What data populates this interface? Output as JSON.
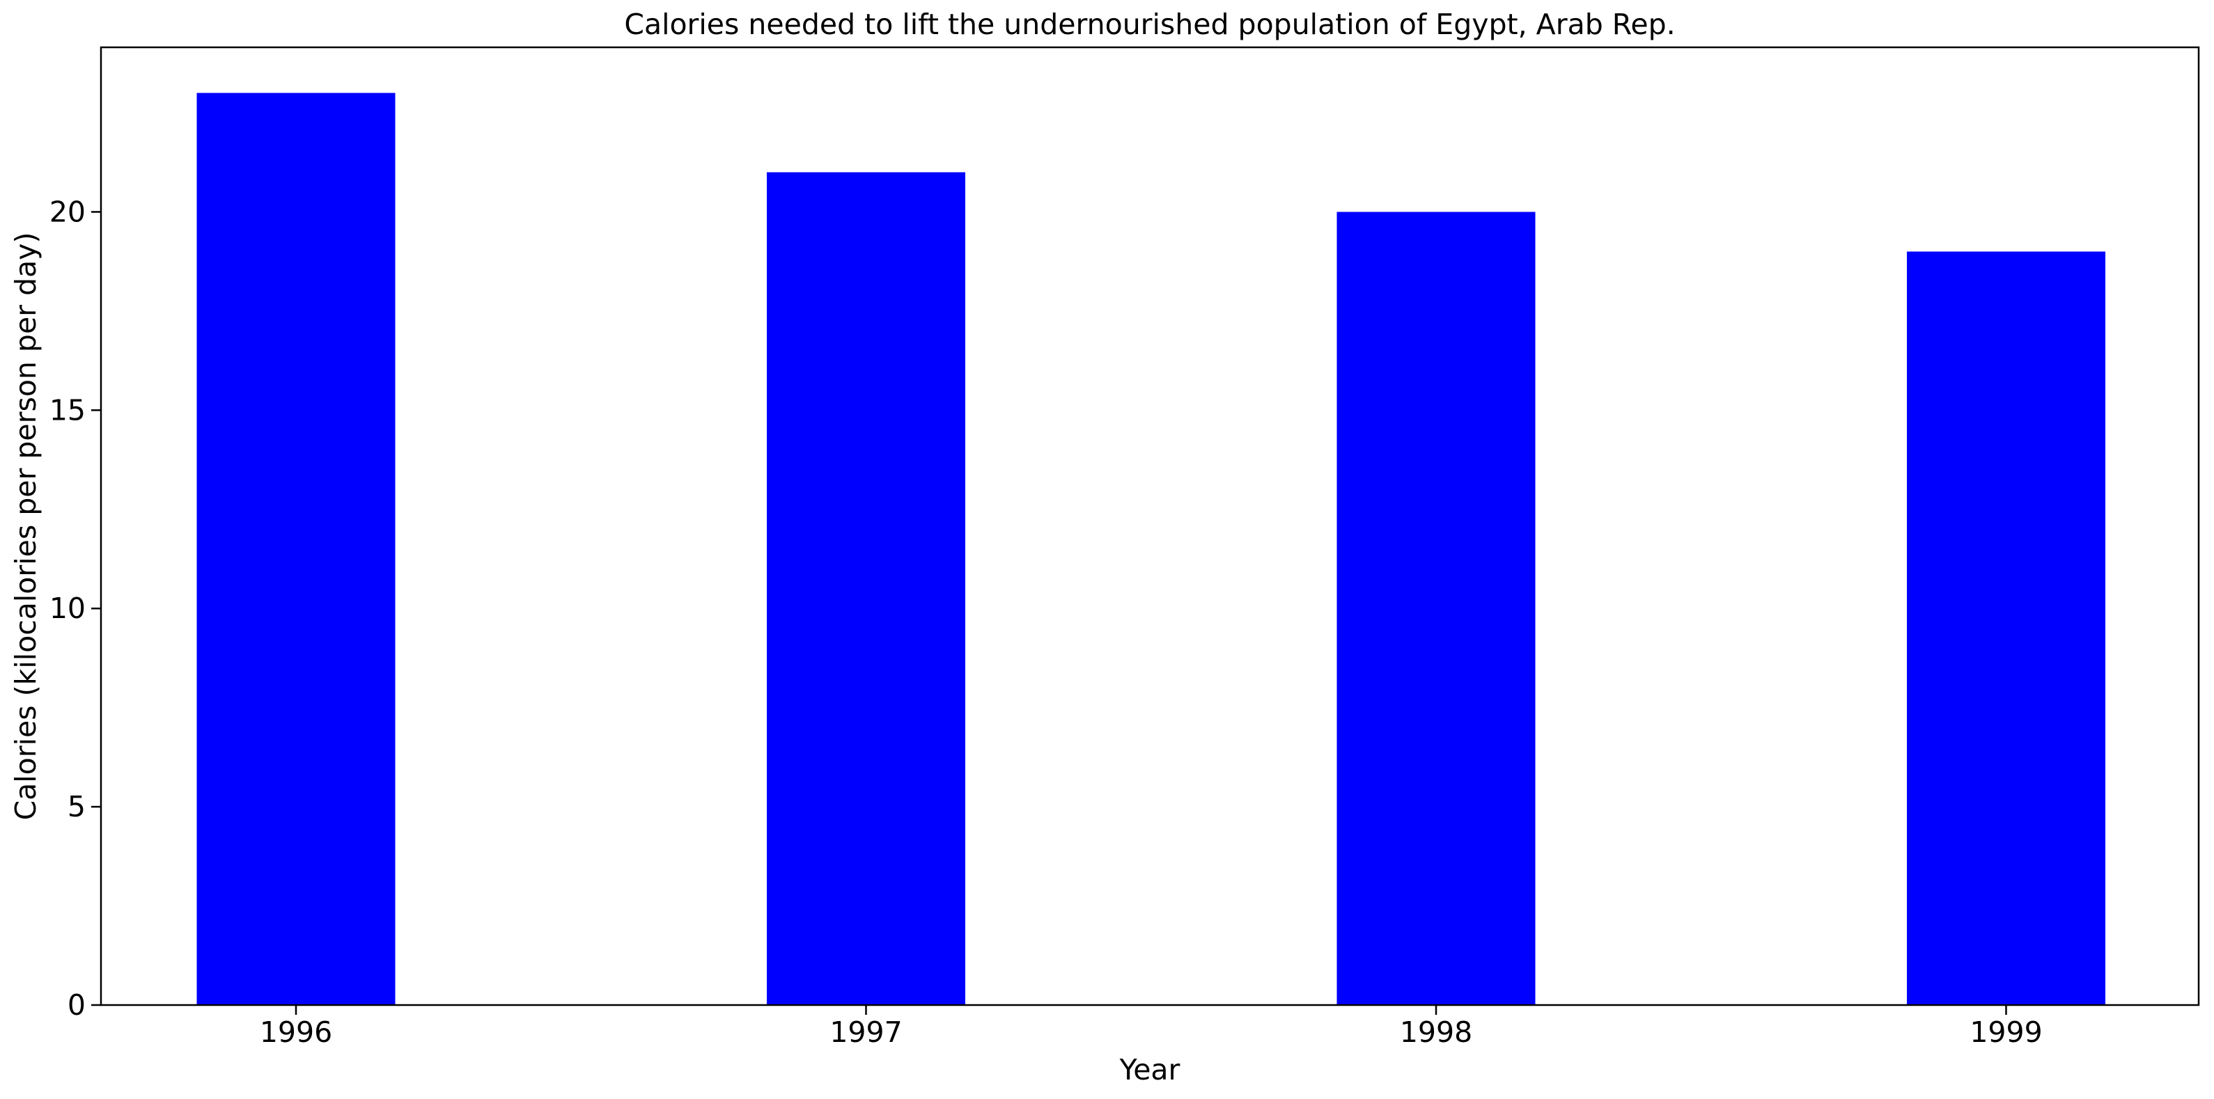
{
  "chart_data": {
    "type": "bar",
    "title": "Calories needed to lift the undernourished population of Egypt, Arab Rep.",
    "xlabel": "Year",
    "ylabel": "Calories (kilocalories per person per day)",
    "categories": [
      "1996",
      "1997",
      "1998",
      "1999"
    ],
    "values": [
      23,
      21,
      20,
      19
    ],
    "ylim": [
      0,
      24.15
    ],
    "yticks": [
      0,
      5,
      10,
      15,
      20
    ],
    "ytick_labels": [
      "0",
      "5",
      "10",
      "15",
      "20"
    ],
    "bar_color": "#0000ff",
    "grid": false,
    "legend": "none"
  }
}
